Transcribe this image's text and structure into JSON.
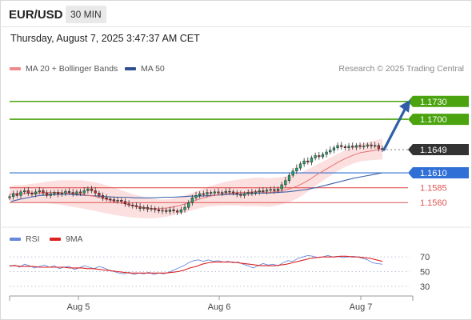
{
  "header": {
    "symbol": "EUR/USD",
    "timeframe": "30 MIN",
    "datetime": "Thursday, August 7, 2025 3:47:37 AM CET"
  },
  "legend": {
    "ma20_bb": "MA 20 + Bollinger Bands",
    "ma50": "MA 50",
    "rsi": "RSI",
    "rsi_ma": "9MA"
  },
  "watermark": "Research © 2025 Trading Central",
  "colors": {
    "target_green": "#4aa30f",
    "current_dark": "#333333",
    "pivot_blue": "#2f6fd6",
    "support_red": "#e05555",
    "bb_fill": "#fbd7d7",
    "ma20": "#e87070",
    "ma50": "#3f63a8",
    "bull": "#26a269",
    "bear": "#c43030",
    "arrow": "#2f5fa8",
    "rsi_line": "#6688dd",
    "rsi_ma_line": "#dd2222"
  },
  "chart_data": [
    {
      "type": "candlestick",
      "title": "EUR/USD 30 MIN",
      "x_tick_labels": [
        "Aug 5",
        "Aug 6",
        "Aug 7"
      ],
      "y_range": [
        1.152,
        1.177
      ],
      "levels": [
        {
          "label": "1.1730",
          "value": 1.173,
          "kind": "target"
        },
        {
          "label": "1.1700",
          "value": 1.17,
          "kind": "target"
        },
        {
          "label": "1.1649",
          "value": 1.1649,
          "kind": "current"
        },
        {
          "label": "1.1610",
          "value": 1.161,
          "kind": "pivot"
        },
        {
          "label": "1.1585",
          "value": 1.1585,
          "kind": "support"
        },
        {
          "label": "1.1560",
          "value": 1.156,
          "kind": "support"
        }
      ],
      "close_path": [
        1.157,
        1.1575,
        1.1572,
        1.1578,
        1.158,
        1.1576,
        1.1574,
        1.1578,
        1.158,
        1.1576,
        1.1572,
        1.1575,
        1.1577,
        1.1574,
        1.1576,
        1.1579,
        1.1577,
        1.1575,
        1.1578,
        1.1576,
        1.158,
        1.1583,
        1.158,
        1.1576,
        1.1572,
        1.1568,
        1.1566,
        1.1565,
        1.1563,
        1.1564,
        1.1562,
        1.1558,
        1.1556,
        1.1555,
        1.1553,
        1.155,
        1.1552,
        1.1549,
        1.155,
        1.1548,
        1.1546,
        1.1547,
        1.1545,
        1.1548,
        1.1546,
        1.1544,
        1.1548,
        1.1552,
        1.156,
        1.1568,
        1.1572,
        1.1575,
        1.1574,
        1.1577,
        1.1576,
        1.1578,
        1.1576,
        1.1577,
        1.1579,
        1.1578,
        1.1576,
        1.1574,
        1.1572,
        1.1575,
        1.1577,
        1.1576,
        1.1578,
        1.158,
        1.1579,
        1.1581,
        1.1582,
        1.158,
        1.1583,
        1.159,
        1.1597,
        1.1606,
        1.1613,
        1.1618,
        1.1625,
        1.163,
        1.1628,
        1.1635,
        1.1639,
        1.1637,
        1.1641,
        1.1645,
        1.1648,
        1.1652,
        1.1656,
        1.1654,
        1.1652,
        1.1655,
        1.1653,
        1.1656,
        1.1654,
        1.1655,
        1.1657,
        1.1655,
        1.1656,
        1.1651,
        1.1649
      ],
      "ma20": [
        1.1574,
        1.1575,
        1.1575,
        1.1576,
        1.1576,
        1.1577,
        1.1577,
        1.1577,
        1.1576,
        1.1575,
        1.1574,
        1.1572,
        1.157,
        1.1567,
        1.1564,
        1.1561,
        1.1558,
        1.1555,
        1.1553,
        1.1551,
        1.155,
        1.155,
        1.1551,
        1.1553,
        1.1556,
        1.156,
        1.1564,
        1.1568,
        1.1571,
        1.1573,
        1.1575,
        1.1576,
        1.1577,
        1.1577,
        1.1578,
        1.1578,
        1.1577,
        1.1578,
        1.158,
        1.1583,
        1.1587,
        1.1593,
        1.16,
        1.1608,
        1.1615,
        1.1622,
        1.1629,
        1.1635,
        1.164,
        1.1644,
        1.1646,
        1.1648,
        1.165
      ],
      "ma50": [
        1.1562,
        1.1566,
        1.1569,
        1.1572,
        1.1573,
        1.1574,
        1.1574,
        1.1573,
        1.1572,
        1.1571,
        1.157,
        1.1569,
        1.1569,
        1.1568,
        1.1568,
        1.1568,
        1.1569,
        1.1569,
        1.157,
        1.1571,
        1.1571,
        1.1572,
        1.1573,
        1.1574,
        1.1574,
        1.1575,
        1.1576,
        1.1576,
        1.1577,
        1.1578,
        1.158,
        1.1582,
        1.1585,
        1.1589,
        1.1593,
        1.1597,
        1.1601,
        1.1604,
        1.1607,
        1.161
      ]
    },
    {
      "type": "line",
      "title": "RSI",
      "y_ticks": [
        "70",
        "50",
        "30"
      ],
      "y_range": [
        20,
        80
      ],
      "series": [
        {
          "name": "RSI",
          "values": [
            57,
            59,
            56,
            60,
            58,
            55,
            57,
            59,
            56,
            58,
            54,
            56,
            57,
            53,
            55,
            58,
            56,
            54,
            57,
            55,
            52,
            50,
            48,
            47,
            49,
            46,
            48,
            47,
            49,
            46,
            48,
            47,
            49,
            52,
            55,
            58,
            62,
            65,
            66,
            64,
            66,
            64,
            65,
            63,
            64,
            62,
            63,
            60,
            58,
            55,
            58,
            61,
            59,
            60,
            58,
            62,
            65,
            64,
            68,
            70,
            72,
            71,
            69,
            70,
            72,
            70,
            71,
            69,
            70,
            71,
            70,
            68,
            66,
            62,
            61,
            60
          ]
        },
        {
          "name": "9MA",
          "values": [
            58,
            58,
            57,
            57,
            57,
            56,
            56,
            56,
            56,
            56,
            55,
            55,
            55,
            54,
            54,
            53,
            52,
            51,
            50,
            49,
            48,
            48,
            48,
            48,
            48,
            48,
            48,
            49,
            50,
            52,
            55,
            57,
            60,
            62,
            63,
            63,
            63,
            63,
            62,
            61,
            60,
            59,
            58,
            58,
            58,
            59,
            60,
            62,
            64,
            66,
            68,
            69,
            70,
            70,
            70,
            71,
            71,
            70,
            70,
            69,
            68,
            66,
            64
          ]
        }
      ]
    }
  ]
}
